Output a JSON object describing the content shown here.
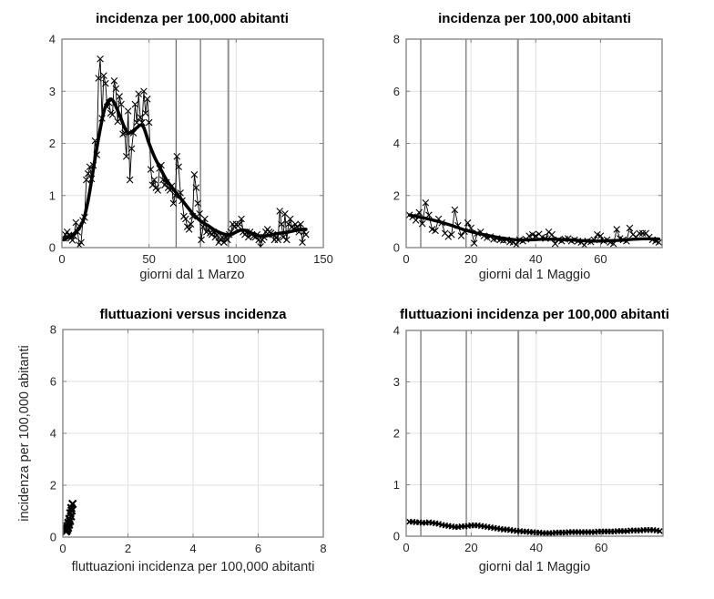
{
  "style": {
    "background": "#ffffff",
    "data_color": "#000000",
    "grid_color": "#e0e0e0",
    "axis_color": "#808080",
    "tick_label_color": "#262626",
    "title_color": "#000000",
    "event_line_color": "#4d4d4d",
    "event_line_thick_color": "#8f8f8f"
  },
  "chart_data": [
    {
      "id": "incidenza-dal-1-marzo",
      "type": "scatter",
      "title": "incidenza per 100,000 abitanti",
      "xlabel": "giorni dal 1 Marzo",
      "ylabel": "",
      "xlim": [
        0,
        150
      ],
      "ylim": [
        0,
        4
      ],
      "xticks": [
        0,
        50,
        100,
        150
      ],
      "yticks": [
        0,
        1,
        2,
        3,
        4
      ],
      "grid": true,
      "event_lines": [
        {
          "x": 65.5,
          "width": 1,
          "color": "#4d4d4d"
        },
        {
          "x": 79.5,
          "width": 1,
          "color": "#4d4d4d"
        },
        {
          "x": 95.5,
          "width": 2,
          "color": "#8f8f8f"
        }
      ],
      "series": [
        {
          "role": "daily-values",
          "style": "markers+line",
          "marker": "x",
          "marker_size": 3.4,
          "marker_stroke": 1.1,
          "line_width": 0.9,
          "x_start": 1,
          "x_step": 1,
          "y": [
            0.18,
            0.25,
            0.3,
            0.24,
            0.18,
            0.14,
            0.22,
            0.48,
            0.3,
            0.05,
            0.1,
            0.52,
            0.58,
            1.3,
            1.42,
            1.55,
            1.32,
            1.58,
            2.05,
            1.78,
            3.25,
            3.62,
            2.48,
            3.3,
            3.15,
            2.7,
            2.78,
            2.58,
            2.55,
            3.2,
            3.05,
            2.42,
            2.9,
            2.75,
            2.18,
            2.2,
            1.75,
            2.62,
            1.3,
            1.9,
            2.2,
            2.75,
            2.4,
            2.95,
            2.5,
            2.4,
            3.0,
            2.58,
            2.85,
            2.4,
            1.5,
            1.2,
            1.3,
            1.15,
            1.1,
            1.52,
            1.58,
            1.3,
            1.2,
            1.25,
            1.15,
            1.1,
            1.18,
            0.85,
            1.0,
            1.75,
            1.55,
            1.05,
            0.9,
            0.6,
            0.55,
            0.4,
            0.35,
            0.45,
            0.6,
            1.4,
            1.15,
            0.85,
            0.65,
            0.15,
            0.4,
            0.55,
            0.3,
            0.35,
            0.28,
            0.25,
            0.3,
            0.2,
            0.25,
            0.1,
            0.15,
            0.2,
            0.1,
            0.2,
            0.15,
            0.25,
            0.3,
            0.45,
            0.4,
            0.45,
            0.42,
            0.45,
            0.55,
            0.3,
            0.25,
            0.3,
            0.2,
            0.3,
            0.25,
            0.22,
            0.2,
            0.25,
            0.15,
            0.02,
            0.15,
            0.2,
            0.3,
            0.35,
            0.3,
            0.28,
            0.25,
            0.15,
            0.2,
            0.15,
            0.7,
            0.45,
            0.2,
            0.65,
            0.15,
            0.45,
            0.55,
            0.4,
            0.35,
            0.45,
            0.4,
            0.3,
            0.45,
            0.1,
            0.3,
            0.25
          ]
        },
        {
          "role": "smoothed-trend",
          "style": "smooth",
          "line_width": 3.6,
          "x": [
            1,
            5,
            8,
            12,
            15,
            18,
            21,
            24,
            26,
            28,
            30,
            33,
            36,
            38,
            40,
            43,
            45,
            47,
            50,
            53,
            56,
            60,
            64,
            68,
            72,
            76,
            80,
            84,
            88,
            92,
            96,
            100,
            103,
            106,
            110,
            114,
            118,
            122,
            126,
            130,
            134,
            138,
            140
          ],
          "y": [
            0.15,
            0.22,
            0.3,
            0.5,
            0.9,
            1.5,
            2.1,
            2.6,
            2.78,
            2.85,
            2.78,
            2.55,
            2.3,
            2.2,
            2.22,
            2.3,
            2.35,
            2.3,
            2.0,
            1.75,
            1.55,
            1.3,
            1.12,
            0.95,
            0.78,
            0.62,
            0.5,
            0.42,
            0.33,
            0.27,
            0.24,
            0.3,
            0.34,
            0.32,
            0.26,
            0.22,
            0.23,
            0.26,
            0.28,
            0.3,
            0.33,
            0.35,
            0.35
          ]
        }
      ]
    },
    {
      "id": "incidenza-dal-1-maggio",
      "type": "scatter",
      "title": "incidenza per 100,000 abitanti",
      "xlabel": "giorni dal 1 Maggio",
      "ylabel": "",
      "xlim": [
        0,
        79
      ],
      "ylim": [
        0,
        8
      ],
      "xticks": [
        0,
        20,
        40,
        60
      ],
      "yticks": [
        0,
        2,
        4,
        6,
        8
      ],
      "grid": true,
      "event_lines": [
        {
          "x": 4.5,
          "width": 1,
          "color": "#4d4d4d"
        },
        {
          "x": 18.5,
          "width": 1,
          "color": "#4d4d4d"
        },
        {
          "x": 34.5,
          "width": 2,
          "color": "#8f8f8f"
        }
      ],
      "series": [
        {
          "role": "daily-values",
          "style": "markers+line",
          "marker": "x",
          "marker_size": 3.4,
          "marker_stroke": 1.1,
          "line_width": 0.9,
          "x_start": 1,
          "x_step": 1,
          "y": [
            1.25,
            1.18,
            1.05,
            1.35,
            0.92,
            1.72,
            1.25,
            0.7,
            0.65,
            1.1,
            0.95,
            0.55,
            0.42,
            0.5,
            1.45,
            0.85,
            0.45,
            0.62,
            0.95,
            0.75,
            0.17,
            0.55,
            0.6,
            0.45,
            0.38,
            0.42,
            0.32,
            0.35,
            0.3,
            0.28,
            0.3,
            0.22,
            0.2,
            0.12,
            0.3,
            0.25,
            0.32,
            0.45,
            0.5,
            0.45,
            0.52,
            0.4,
            0.35,
            0.6,
            0.5,
            0.15,
            0.3,
            0.25,
            0.32,
            0.35,
            0.25,
            0.3,
            0.25,
            0.2,
            0.1,
            0.25,
            0.22,
            0.3,
            0.5,
            0.45,
            0.25,
            0.3,
            0.2,
            0.15,
            0.7,
            0.35,
            0.3,
            0.25,
            0.75,
            0.5,
            0.4,
            0.55,
            0.55,
            0.55,
            0.4,
            0.3,
            0.25,
            0.2
          ]
        },
        {
          "role": "smoothed-trend",
          "style": "smooth",
          "line_width": 3.4,
          "x": [
            1,
            5,
            10,
            14,
            18,
            22,
            26,
            30,
            34,
            38,
            42,
            46,
            50,
            54,
            58,
            62,
            66,
            70,
            74,
            78
          ],
          "y": [
            1.25,
            1.15,
            1.0,
            0.85,
            0.68,
            0.55,
            0.45,
            0.36,
            0.3,
            0.3,
            0.32,
            0.32,
            0.3,
            0.27,
            0.25,
            0.26,
            0.28,
            0.32,
            0.34,
            0.33
          ]
        }
      ]
    },
    {
      "id": "fluttuazioni-versus-incidenza",
      "type": "scatter",
      "title": "fluttuazioni versus incidenza",
      "xlabel": "fluttuazioni incidenza per 100,000 abitanti",
      "ylabel": "incidenza per 100,000 abitanti",
      "xlim": [
        0,
        8
      ],
      "ylim": [
        0,
        8
      ],
      "xticks": [
        0,
        2,
        4,
        6,
        8
      ],
      "yticks": [
        0,
        2,
        4,
        6,
        8
      ],
      "grid": true,
      "event_lines": [],
      "series": [
        {
          "role": "fluctuation-vs-incidence",
          "style": "markers+line",
          "marker": "x",
          "marker_size": 4.0,
          "marker_stroke": 2.2,
          "line_width": 1.8,
          "x": [
            0.1,
            0.13,
            0.11,
            0.16,
            0.14,
            0.19,
            0.17,
            0.22,
            0.2,
            0.25,
            0.23,
            0.27,
            0.26,
            0.3
          ],
          "y": [
            0.22,
            0.28,
            0.32,
            0.36,
            0.42,
            0.48,
            0.55,
            0.62,
            0.7,
            0.8,
            0.92,
            1.02,
            1.12,
            1.28
          ]
        }
      ]
    },
    {
      "id": "fluttuazioni-dal-1-maggio",
      "type": "scatter",
      "title": "fluttuazioni incidenza per 100,000 abitanti",
      "xlabel": "giorni dal 1 Maggio",
      "ylabel": "",
      "xlim": [
        0,
        79
      ],
      "ylim": [
        0,
        4
      ],
      "xticks": [
        0,
        20,
        40,
        60
      ],
      "yticks": [
        0,
        1,
        2,
        3,
        4
      ],
      "grid": true,
      "event_lines": [
        {
          "x": 4.5,
          "width": 1,
          "color": "#4d4d4d"
        },
        {
          "x": 18.5,
          "width": 1,
          "color": "#4d4d4d"
        },
        {
          "x": 34.5,
          "width": 2,
          "color": "#8f8f8f"
        }
      ],
      "series": [
        {
          "role": "daily-fluctuation",
          "style": "markers+line",
          "marker": "x",
          "marker_size": 2.8,
          "marker_stroke": 1.6,
          "line_width": 1.6,
          "x_start": 1,
          "x_step": 1,
          "y": [
            0.28,
            0.28,
            0.27,
            0.27,
            0.26,
            0.26,
            0.27,
            0.26,
            0.25,
            0.24,
            0.22,
            0.21,
            0.2,
            0.19,
            0.18,
            0.18,
            0.19,
            0.19,
            0.2,
            0.21,
            0.21,
            0.21,
            0.2,
            0.19,
            0.18,
            0.17,
            0.16,
            0.15,
            0.14,
            0.13,
            0.13,
            0.12,
            0.11,
            0.1,
            0.1,
            0.09,
            0.09,
            0.08,
            0.08,
            0.07,
            0.07,
            0.06,
            0.06,
            0.06,
            0.06,
            0.07,
            0.07,
            0.07,
            0.07,
            0.08,
            0.08,
            0.08,
            0.08,
            0.08,
            0.08,
            0.08,
            0.08,
            0.08,
            0.09,
            0.09,
            0.09,
            0.09,
            0.09,
            0.09,
            0.1,
            0.1,
            0.1,
            0.1,
            0.11,
            0.11,
            0.11,
            0.11,
            0.12,
            0.12,
            0.12,
            0.12,
            0.11,
            0.1
          ]
        }
      ]
    }
  ]
}
